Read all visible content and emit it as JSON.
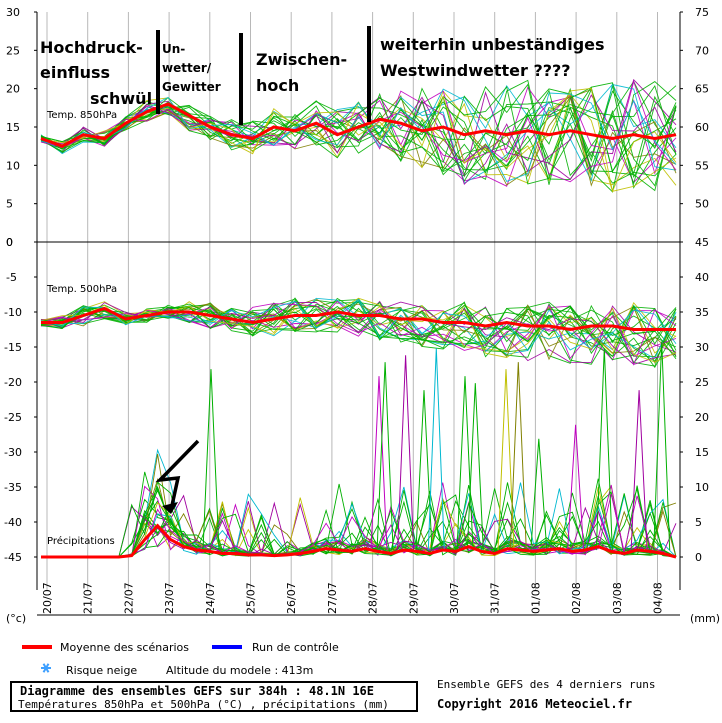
{
  "chart_data": [
    {
      "type": "line",
      "panel": "Temp. 850hPa",
      "ylabel_left_ticks": [
        "30",
        "25",
        "20",
        "15",
        "10",
        "5",
        "0"
      ],
      "ylabel_right_ticks": [
        "75",
        "70",
        "65",
        "60",
        "55",
        "50"
      ],
      "ylim": [
        0,
        30
      ],
      "mean_series": {
        "name": "Moyenne des scénarios",
        "color": "#ff0000",
        "values": [
          13.5,
          12.5,
          14.0,
          13.5,
          15.5,
          17.0,
          18.0,
          16.5,
          15.0,
          14.0,
          13.5,
          15.0,
          14.5,
          15.5,
          14.0,
          15.0,
          16.0,
          15.5,
          14.5,
          15.0,
          14.0,
          14.5,
          14.0,
          14.5,
          14.0,
          14.5,
          14.0,
          13.5,
          14.0,
          13.5,
          14.0
        ]
      },
      "spread_upper": [
        14.0,
        13.5,
        15.0,
        14.5,
        16.5,
        18.5,
        19.0,
        18.0,
        16.5,
        16.0,
        16.0,
        17.5,
        17.0,
        18.5,
        17.5,
        18.5,
        19.5,
        20.0,
        20.5,
        20.5,
        20.0,
        21.0,
        20.5,
        21.5,
        20.5,
        21.0,
        20.5,
        21.0,
        21.5,
        21.0,
        20.5
      ],
      "spread_lower": [
        13.0,
        11.5,
        13.0,
        12.5,
        14.5,
        15.5,
        16.5,
        14.5,
        13.0,
        12.0,
        11.5,
        12.5,
        12.0,
        12.5,
        11.0,
        11.5,
        11.5,
        10.5,
        8.5,
        8.5,
        7.5,
        7.5,
        7.0,
        7.5,
        7.0,
        7.5,
        7.0,
        6.5,
        7.0,
        6.5,
        7.0
      ]
    },
    {
      "type": "line",
      "panel": "Temp. 500hPa",
      "ylabel_left_ticks": [
        "0",
        "-5",
        "-10",
        "-15",
        "-20",
        "-25",
        "-30",
        "-35",
        "-40",
        "-45"
      ],
      "ylabel_right_ticks": [
        "45",
        "40",
        "35",
        "30",
        "25",
        "20",
        "15",
        "10",
        "5",
        "0"
      ],
      "ylim": [
        -45,
        0
      ],
      "mean_series": {
        "name": "Moyenne des scénarios",
        "color": "#ff0000",
        "values": [
          -11.5,
          -11.5,
          -10.5,
          -9.5,
          -11.0,
          -10.5,
          -10.0,
          -10.0,
          -10.5,
          -11.0,
          -11.5,
          -11.0,
          -10.5,
          -10.5,
          -10.0,
          -10.5,
          -10.5,
          -11.0,
          -11.0,
          -11.5,
          -11.5,
          -12.0,
          -11.5,
          -12.0,
          -12.0,
          -12.5,
          -12.0,
          -12.0,
          -12.5,
          -12.5,
          -12.5
        ]
      },
      "spread_upper": [
        -11.0,
        -10.5,
        -9.0,
        -8.5,
        -10.0,
        -9.5,
        -9.0,
        -8.5,
        -8.5,
        -9.0,
        -9.0,
        -8.5,
        -8.0,
        -8.0,
        -8.0,
        -8.0,
        -8.0,
        -8.0,
        -8.5,
        -8.5,
        -8.5,
        -9.0,
        -9.0,
        -9.0,
        -8.5,
        -9.0,
        -9.0,
        -9.0,
        -8.5,
        -9.0,
        -9.0
      ],
      "spread_lower": [
        -12.0,
        -12.5,
        -12.0,
        -11.0,
        -12.0,
        -11.5,
        -11.0,
        -11.5,
        -12.5,
        -13.0,
        -13.5,
        -13.5,
        -13.0,
        -13.0,
        -13.0,
        -13.5,
        -14.0,
        -14.5,
        -15.0,
        -15.5,
        -16.0,
        -16.5,
        -16.5,
        -17.0,
        -17.0,
        -17.5,
        -17.5,
        -17.0,
        -17.5,
        -18.0,
        -17.5
      ]
    },
    {
      "type": "line",
      "panel": "Précipitations",
      "unit": "(mm)",
      "ylim": [
        0,
        45
      ],
      "mean_series": {
        "name": "Moyenne des scénarios",
        "color": "#ff0000",
        "values": [
          0,
          0,
          0,
          0,
          0,
          0,
          0,
          0.2,
          2.5,
          4.5,
          2.5,
          1.5,
          1.0,
          0.8,
          0.5,
          0.5,
          0.3,
          0.3,
          0.2,
          0.3,
          0.5,
          0.8,
          1.2,
          1.0,
          0.8,
          1.2,
          0.8,
          0.5,
          1.0,
          0.8,
          0.5,
          1.0,
          0.8,
          1.5,
          0.8,
          0.5,
          1.2,
          1.0,
          0.8,
          1.0,
          1.2,
          0.8,
          1.0,
          1.5,
          0.8,
          0.5,
          1.0,
          0.8,
          0.5,
          0
        ]
      },
      "peaks": [
        {
          "date_index": 8.3,
          "value": 27
        },
        {
          "date_index": 16.5,
          "value": 26
        },
        {
          "date_index": 16.8,
          "value": 28
        },
        {
          "date_index": 17.8,
          "value": 29
        },
        {
          "date_index": 18.7,
          "value": 24
        },
        {
          "date_index": 19.3,
          "value": 30
        },
        {
          "date_index": 20.7,
          "value": 26
        },
        {
          "date_index": 21.2,
          "value": 25
        },
        {
          "date_index": 22.7,
          "value": 27
        },
        {
          "date_index": 23.3,
          "value": 28
        },
        {
          "date_index": 24.3,
          "value": 17
        },
        {
          "date_index": 26.1,
          "value": 19
        },
        {
          "date_index": 27.5,
          "value": 30
        },
        {
          "date_index": 29.2,
          "value": 24
        },
        {
          "date_index": 30.3,
          "value": 31
        }
      ]
    }
  ],
  "x_axis": {
    "dates": [
      "20/07",
      "21/07",
      "22/07",
      "23/07",
      "24/07",
      "25/07",
      "26/07",
      "27/07",
      "28/07",
      "29/07",
      "30/07",
      "31/07",
      "01/08",
      "02/08",
      "03/08",
      "04/08"
    ],
    "left_unit": "(°c)",
    "right_unit": "(mm)"
  },
  "annotations": {
    "hochdruck_1": "Hochdruck-",
    "hochdruck_2": "einfluss",
    "schwuel": "schwül",
    "unwetter_1": "Un-",
    "unwetter_2": "wetter/",
    "unwetter_3": "Gewitter",
    "zwischen_1": "Zwischen-",
    "zwischen_2": "hoch",
    "westwind_1": "weiterhin unbeständiges",
    "westwind_2": "Westwindwetter ????"
  },
  "panel_labels": {
    "t850": "Temp. 850hPa",
    "t500": "Temp. 500hPa",
    "precip": "Précipitations"
  },
  "legend": {
    "mean_label": "Moyenne des scénarios",
    "mean_color": "#ff0000",
    "control_label": "Run de contrôle",
    "control_color": "#0000ff",
    "snow_label": "Risque neige",
    "altitude_label": "Altitude du modele : 413m"
  },
  "footer": {
    "title": "Diagramme des ensembles GEFS sur 384h : 48.1N 16E",
    "subtitle": "Températures 850hPa et 500hPa (°C) , précipitations (mm)",
    "ensemble_note": "Ensemble GEFS des 4 derniers runs",
    "copyright": "Copyright 2016 Meteociel.fr"
  },
  "colors": {
    "member_palette": [
      "#00b000",
      "#00b000",
      "#00b000",
      "#c000c0",
      "#c0c000",
      "#00b8d0",
      "#00b000",
      "#808000",
      "#00b000",
      "#a000a0"
    ],
    "grid": "#b0b0b0",
    "mean": "#ff0000",
    "control": "#0000ff",
    "snow": "#3fa0ff"
  }
}
